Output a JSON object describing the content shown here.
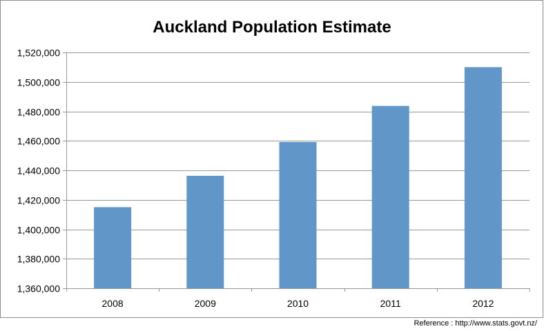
{
  "chart_data": {
    "type": "bar",
    "title": "Auckland Population Estimate",
    "xlabel": "",
    "ylabel": "",
    "categories": [
      "2008",
      "2009",
      "2010",
      "2011",
      "2012"
    ],
    "values": [
      1415000,
      1436300,
      1459200,
      1483700,
      1510000
    ],
    "ylim": [
      1360000,
      1520000
    ],
    "yticks": [
      1360000,
      1380000,
      1400000,
      1420000,
      1440000,
      1460000,
      1480000,
      1500000,
      1520000
    ],
    "ytick_labels": [
      "1,360,000",
      "1,380,000",
      "1,400,000",
      "1,420,000",
      "1,440,000",
      "1,460,000",
      "1,480,000",
      "1,500,000",
      "1,520,000"
    ],
    "grid": true,
    "legend": "none",
    "bar_color": "#6196C9",
    "grid_color": "#969696"
  },
  "footer": {
    "reference": "Reference : http://www.stats.govt.nz/"
  }
}
